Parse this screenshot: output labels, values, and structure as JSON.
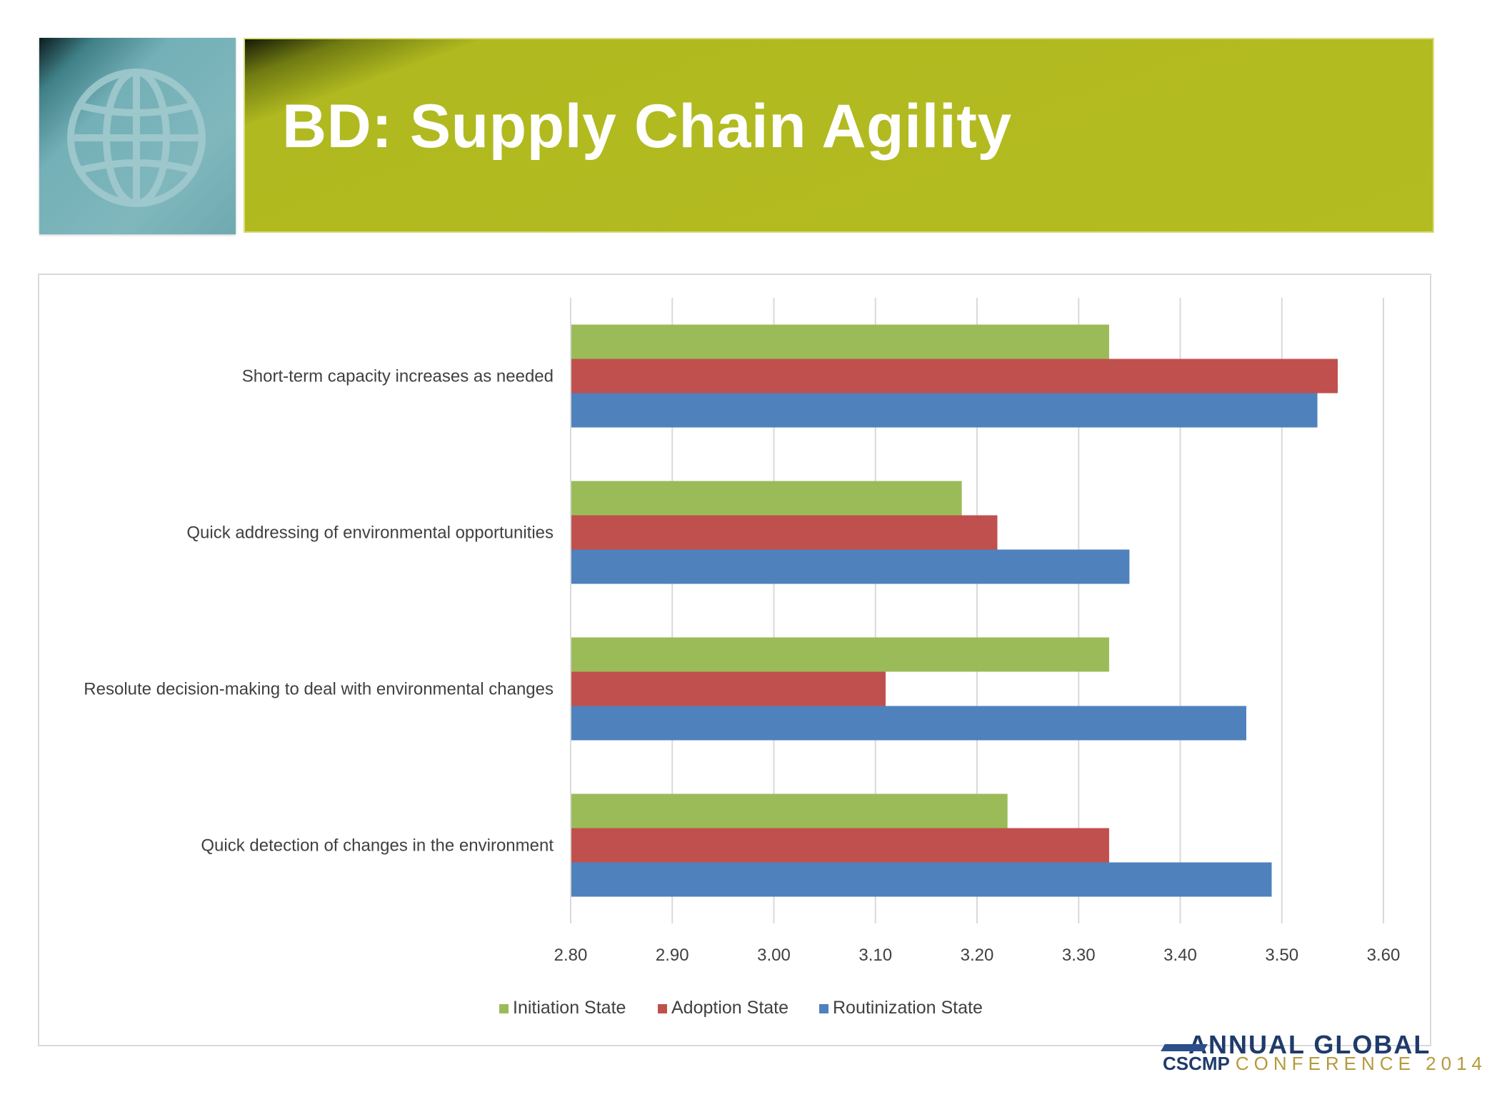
{
  "slide": {
    "title": "BD: Supply Chain Agility",
    "icon": "globe-icon"
  },
  "footer": {
    "top_text": "ANNUAL GLOBAL",
    "brand": "CSCMP",
    "conference": "CONFERENCE 2014"
  },
  "chart_data": {
    "type": "bar",
    "orientation": "horizontal",
    "categories": [
      "Short-term capacity increases as needed",
      "Quick addressing of environmental opportunities",
      "Resolute decision-making to deal with environmental changes",
      "Quick detection of changes in the environment"
    ],
    "series": [
      {
        "name": "Initiation State",
        "color": "#9bbb59",
        "values": [
          3.33,
          3.185,
          3.33,
          3.23
        ]
      },
      {
        "name": "Adoption State",
        "color": "#c0504d",
        "values": [
          3.555,
          3.22,
          3.11,
          3.33
        ]
      },
      {
        "name": "Routinization State",
        "color": "#4f81bd",
        "values": [
          3.535,
          3.35,
          3.465,
          3.49
        ]
      }
    ],
    "xlim": [
      2.8,
      3.6
    ],
    "xticks": [
      "2.80",
      "2.90",
      "3.00",
      "3.10",
      "3.20",
      "3.30",
      "3.40",
      "3.50",
      "3.60"
    ],
    "grid": true,
    "legend": "bottom"
  }
}
